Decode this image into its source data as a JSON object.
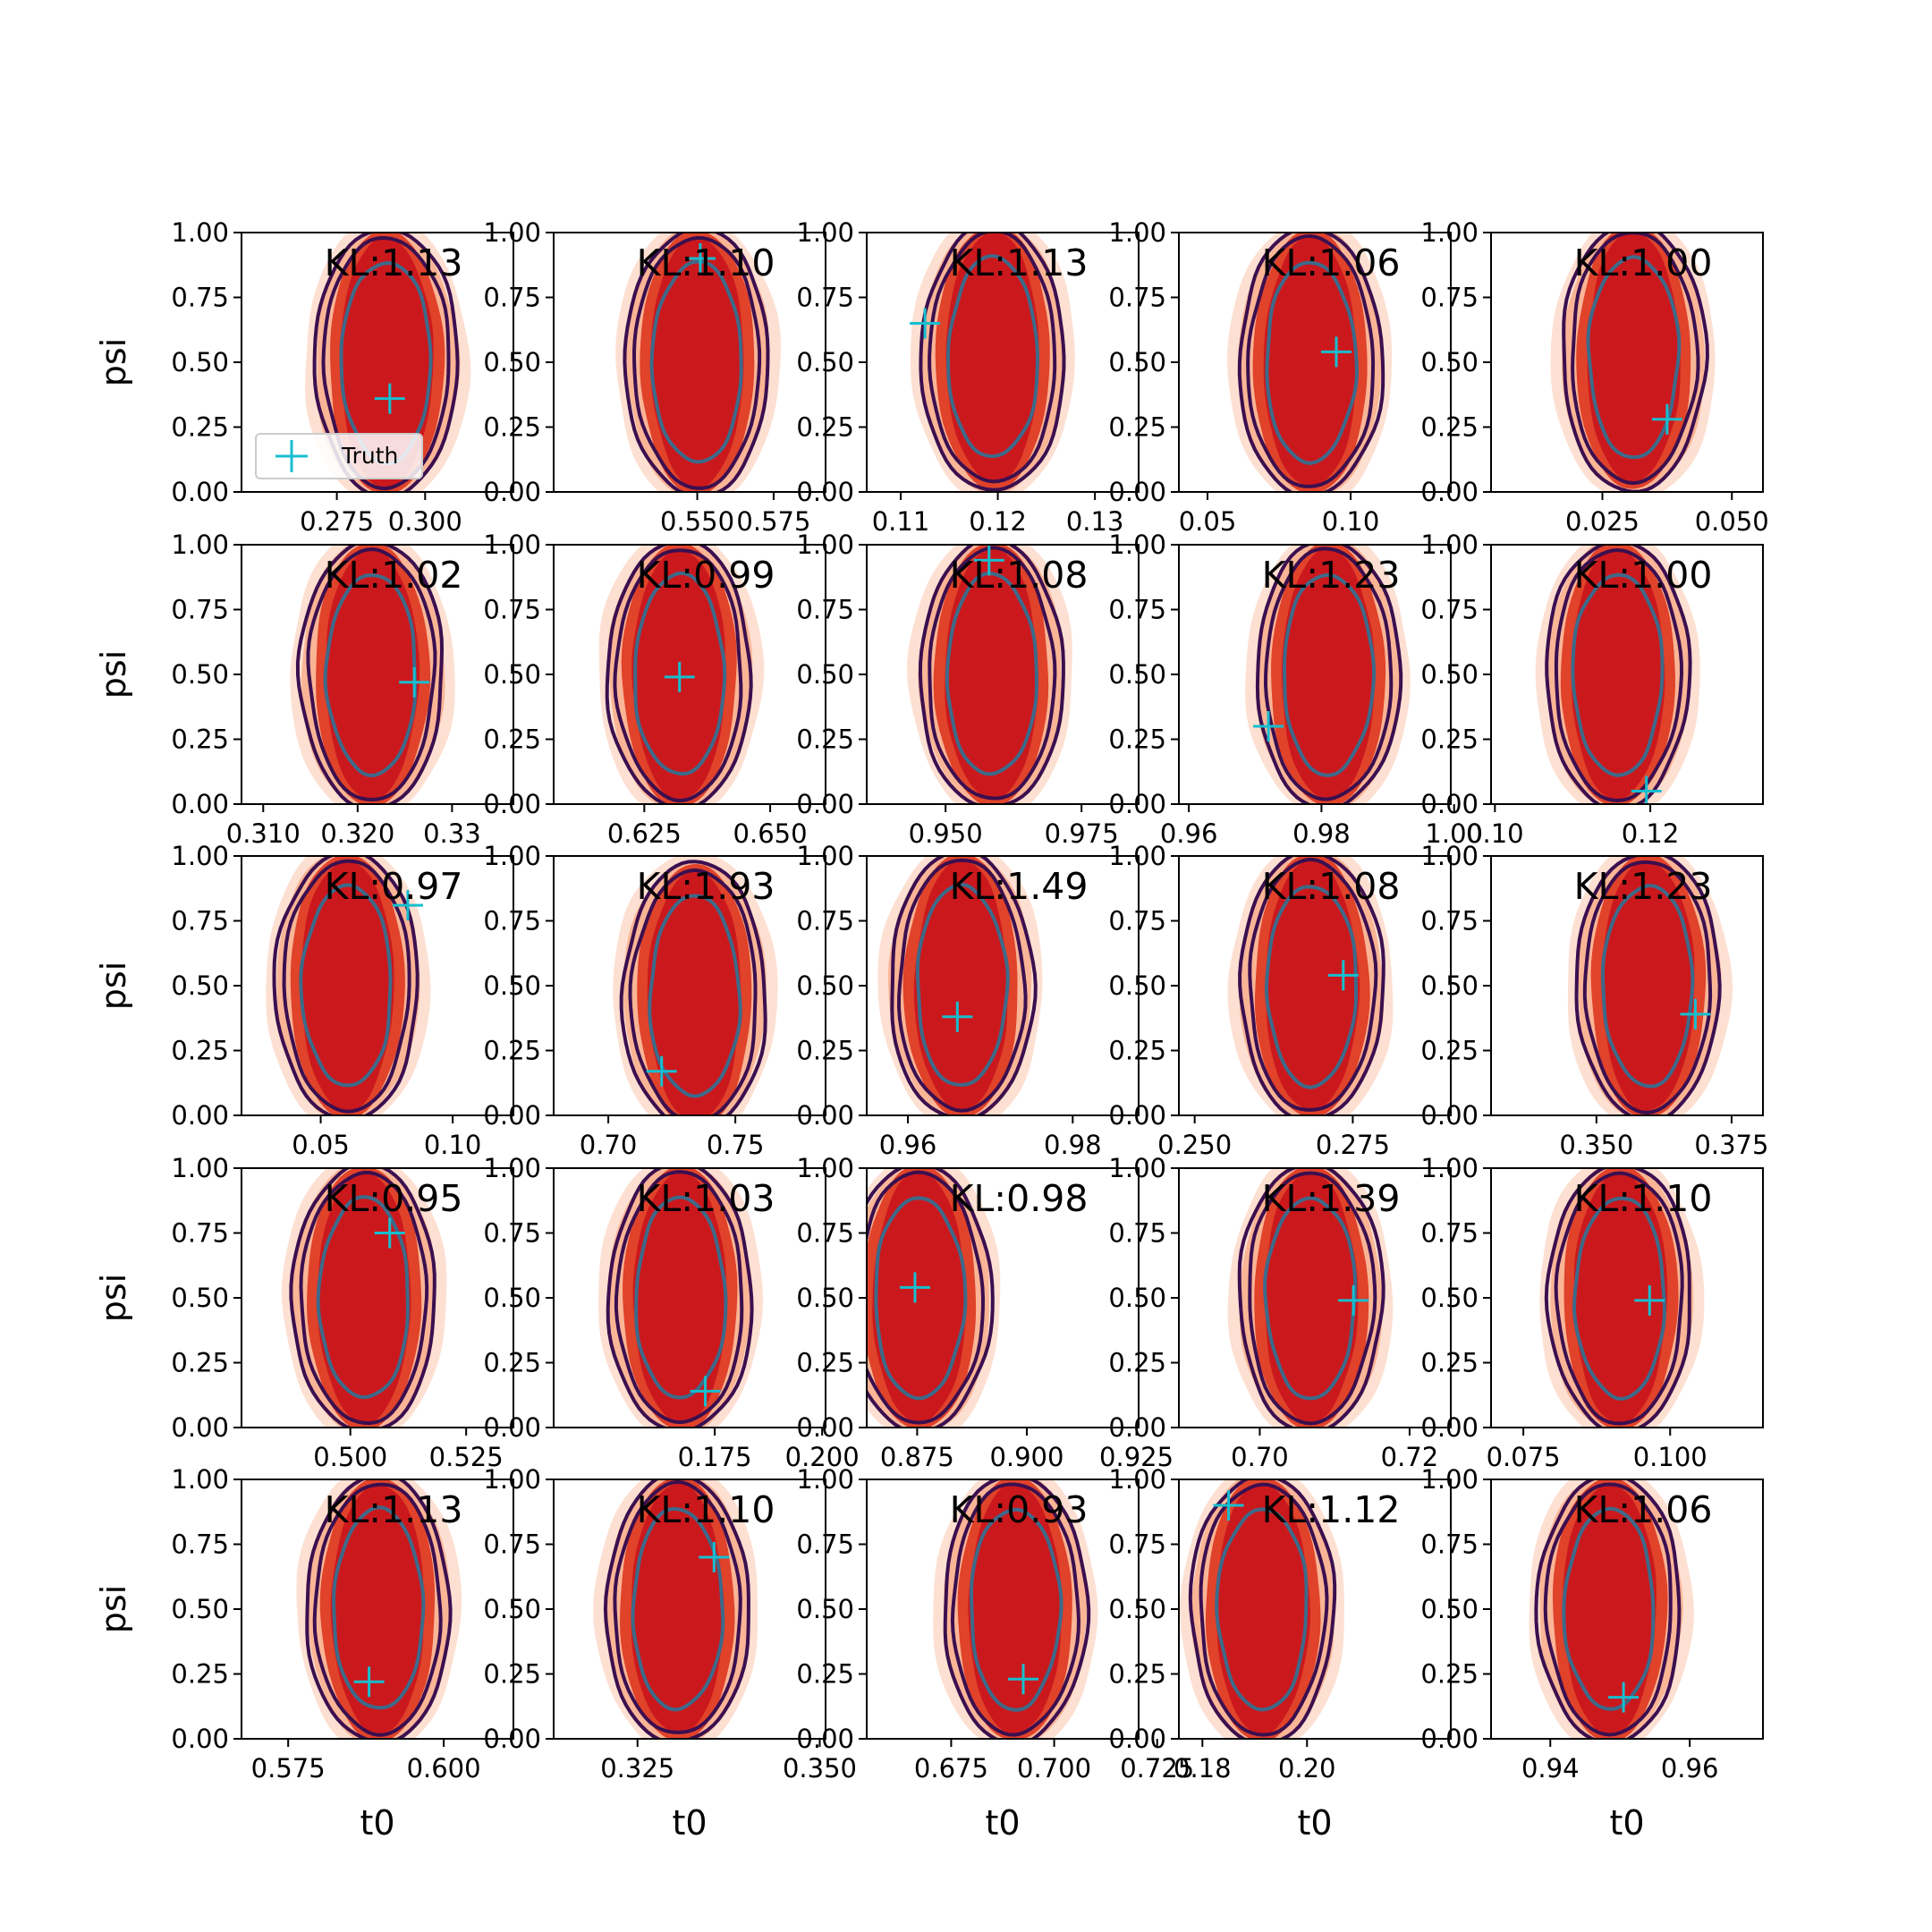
{
  "figure": {
    "ylabel": "psi",
    "xlabel": "t0",
    "legend_label": "Truth",
    "colors": {
      "truth": "#17becf",
      "contour_outer": "#3b0f4f",
      "contour_inner": "#3d6a8a",
      "fill_dark": "#cb181d",
      "fill_mid": "#e0422a",
      "fill_light": "#f9b596",
      "fill_faint": "#fde0d2"
    }
  },
  "chart_data": [
    {
      "type": "contour",
      "kl_label": "KL:1.13",
      "xticks": [
        "0.275",
        "0.300"
      ],
      "xtick_values": [
        0.275,
        0.3
      ],
      "xlim": [
        0.248,
        0.325
      ],
      "ylim": [
        0,
        1
      ],
      "yticks": [
        "0.00",
        "0.25",
        "0.50",
        "0.75",
        "1.00"
      ],
      "center": [
        0.289,
        0.5
      ],
      "truth": [
        0.29,
        0.36
      ]
    },
    {
      "type": "contour",
      "kl_label": "KL:1.10",
      "xticks": [
        "0.550",
        "0.575"
      ],
      "xtick_values": [
        0.55,
        0.575
      ],
      "xlim": [
        0.503,
        0.592
      ],
      "ylim": [
        0,
        1
      ],
      "yticks": [
        "0.00",
        "0.25",
        "0.50",
        "0.75",
        "1.00"
      ],
      "center": [
        0.55,
        0.5
      ],
      "truth": [
        0.551,
        0.9
      ]
    },
    {
      "type": "contour",
      "kl_label": "KL:1.13",
      "xticks": [
        "0.11",
        "0.12",
        "0.13"
      ],
      "xtick_values": [
        0.11,
        0.12,
        0.13
      ],
      "xlim": [
        0.1065,
        0.1345
      ],
      "ylim": [
        0,
        1
      ],
      "yticks": [
        "0.00",
        "0.25",
        "0.50",
        "0.75",
        "1.00"
      ],
      "center": [
        0.1195,
        0.52
      ],
      "truth": [
        0.1125,
        0.65
      ]
    },
    {
      "type": "contour",
      "kl_label": "KL:1.06",
      "xticks": [
        "0.05",
        "0.10"
      ],
      "xtick_values": [
        0.05,
        0.1
      ],
      "xlim": [
        0.04,
        0.135
      ],
      "ylim": [
        0,
        1
      ],
      "yticks": [
        "0.00",
        "0.25",
        "0.50",
        "0.75",
        "1.00"
      ],
      "center": [
        0.086,
        0.5
      ],
      "truth": [
        0.095,
        0.54
      ]
    },
    {
      "type": "contour",
      "kl_label": "KL:1.00",
      "xticks": [
        "0.025",
        "0.050"
      ],
      "xtick_values": [
        0.025,
        0.05
      ],
      "xlim": [
        0.0035,
        0.056
      ],
      "ylim": [
        0,
        1
      ],
      "yticks": [
        "0.00",
        "0.25",
        "0.50",
        "0.75",
        "1.00"
      ],
      "center": [
        0.031,
        0.52
      ],
      "truth": [
        0.0375,
        0.28
      ]
    },
    {
      "type": "contour",
      "kl_label": "KL:1.02",
      "xticks": [
        "0.310",
        "0.320",
        "0.33"
      ],
      "xtick_values": [
        0.31,
        0.32,
        0.33
      ],
      "xlim": [
        0.3077,
        0.3365
      ],
      "ylim": [
        0,
        1
      ],
      "yticks": [
        "0.00",
        "0.25",
        "0.50",
        "0.75",
        "1.00"
      ],
      "center": [
        0.3215,
        0.5
      ],
      "truth": [
        0.326,
        0.47
      ]
    },
    {
      "type": "contour",
      "kl_label": "KL:0.99",
      "xticks": [
        "0.625",
        "0.650"
      ],
      "xtick_values": [
        0.625,
        0.65
      ],
      "xlim": [
        0.607,
        0.661
      ],
      "ylim": [
        0,
        1
      ],
      "yticks": [
        "0.00",
        "0.25",
        "0.50",
        "0.75",
        "1.00"
      ],
      "center": [
        0.632,
        0.5
      ],
      "truth": [
        0.632,
        0.49
      ]
    },
    {
      "type": "contour",
      "kl_label": "KL:1.08",
      "xticks": [
        "0.950",
        "0.975"
      ],
      "xtick_values": [
        0.95,
        0.975
      ],
      "xlim": [
        0.9355,
        0.9855
      ],
      "ylim": [
        0,
        1
      ],
      "yticks": [
        "0.00",
        "0.25",
        "0.50",
        "0.75",
        "1.00"
      ],
      "center": [
        0.9585,
        0.5
      ],
      "truth": [
        0.958,
        0.94
      ]
    },
    {
      "type": "contour",
      "kl_label": "KL:1.23",
      "xticks": [
        "0.96",
        "0.98",
        "1.00"
      ],
      "xtick_values": [
        0.96,
        0.98,
        1.0
      ],
      "xlim": [
        0.9585,
        0.9995
      ],
      "ylim": [
        0,
        1
      ],
      "yticks": [
        "0.00",
        "0.25",
        "0.50",
        "0.75",
        "1.00"
      ],
      "center": [
        0.981,
        0.5
      ],
      "truth": [
        0.972,
        0.3
      ]
    },
    {
      "type": "contour",
      "kl_label": "KL:1.00",
      "xticks": [
        "0.10",
        "0.12"
      ],
      "xtick_values": [
        0.1,
        0.12
      ],
      "xlim": [
        0.0995,
        0.1345
      ],
      "ylim": [
        0,
        1
      ],
      "yticks": [
        "0.00",
        "0.25",
        "0.50",
        "0.75",
        "1.00"
      ],
      "center": [
        0.1158,
        0.5
      ],
      "truth": [
        0.1195,
        0.05
      ]
    },
    {
      "type": "contour",
      "kl_label": "KL:0.97",
      "xticks": [
        "0.05",
        "0.10"
      ],
      "xtick_values": [
        0.05,
        0.1
      ],
      "xlim": [
        0.02,
        0.123
      ],
      "ylim": [
        0,
        1
      ],
      "yticks": [
        "0.00",
        "0.25",
        "0.50",
        "0.75",
        "1.00"
      ],
      "center": [
        0.06,
        0.5
      ],
      "truth": [
        0.083,
        0.81
      ]
    },
    {
      "type": "contour",
      "kl_label": "KL:1.93",
      "xticks": [
        "0.70",
        "0.75"
      ],
      "xtick_values": [
        0.7,
        0.75
      ],
      "xlim": [
        0.6785,
        0.7855
      ],
      "ylim": [
        0,
        1
      ],
      "yticks": [
        "0.00",
        "0.25",
        "0.50",
        "0.75",
        "1.00"
      ],
      "center": [
        0.734,
        0.46
      ],
      "truth": [
        0.721,
        0.17
      ]
    },
    {
      "type": "contour",
      "kl_label": "KL:1.49",
      "xticks": [
        "0.96",
        "0.98"
      ],
      "xtick_values": [
        0.96,
        0.98
      ],
      "xlim": [
        0.955,
        0.988
      ],
      "ylim": [
        0,
        1
      ],
      "yticks": [
        "0.00",
        "0.25",
        "0.50",
        "0.75",
        "1.00"
      ],
      "center": [
        0.9665,
        0.5
      ],
      "truth": [
        0.966,
        0.38
      ]
    },
    {
      "type": "contour",
      "kl_label": "KL:1.08",
      "xticks": [
        "0.250",
        "0.275"
      ],
      "xtick_values": [
        0.25,
        0.275
      ],
      "xlim": [
        0.2475,
        0.2905
      ],
      "ylim": [
        0,
        1
      ],
      "yticks": [
        "0.00",
        "0.25",
        "0.50",
        "0.75",
        "1.00"
      ],
      "center": [
        0.2685,
        0.5
      ],
      "truth": [
        0.2735,
        0.54
      ]
    },
    {
      "type": "contour",
      "kl_label": "KL:1.23",
      "xticks": [
        "0.350",
        "0.375"
      ],
      "xtick_values": [
        0.35,
        0.375
      ],
      "xlim": [
        0.3305,
        0.3808
      ],
      "ylim": [
        0,
        1
      ],
      "yticks": [
        "0.00",
        "0.25",
        "0.50",
        "0.75",
        "1.00"
      ],
      "center": [
        0.3595,
        0.5
      ],
      "truth": [
        0.3683,
        0.39
      ]
    },
    {
      "type": "contour",
      "kl_label": "KL:0.95",
      "xticks": [
        "0.500",
        "0.525"
      ],
      "xtick_values": [
        0.5,
        0.525
      ],
      "xlim": [
        0.4765,
        0.5352
      ],
      "ylim": [
        0,
        1
      ],
      "yticks": [
        "0.00",
        "0.25",
        "0.50",
        "0.75",
        "1.00"
      ],
      "center": [
        0.503,
        0.5
      ],
      "truth": [
        0.5085,
        0.75
      ]
    },
    {
      "type": "contour",
      "kl_label": "KL:1.03",
      "xticks": [
        "0.175",
        "0.200"
      ],
      "xtick_values": [
        0.175,
        0.2
      ],
      "xlim": [
        0.1375,
        0.2008
      ],
      "ylim": [
        0,
        1
      ],
      "yticks": [
        "0.00",
        "0.25",
        "0.50",
        "0.75",
        "1.00"
      ],
      "center": [
        0.167,
        0.5
      ],
      "truth": [
        0.1728,
        0.14
      ]
    },
    {
      "type": "contour",
      "kl_label": "KL:0.98",
      "xticks": [
        "0.875",
        "0.900",
        "0.925"
      ],
      "xtick_values": [
        0.875,
        0.9,
        0.925
      ],
      "xlim": [
        0.8635,
        0.9255
      ],
      "ylim": [
        0,
        1
      ],
      "yticks": [
        "0.00",
        "0.25",
        "0.50",
        "0.75",
        "1.00"
      ],
      "center": [
        0.8755,
        0.5
      ],
      "truth": [
        0.8745,
        0.54
      ]
    },
    {
      "type": "contour",
      "kl_label": "KL:1.39",
      "xticks": [
        "0.70",
        "0.72"
      ],
      "xtick_values": [
        0.7,
        0.72
      ],
      "xlim": [
        0.6892,
        0.7255
      ],
      "ylim": [
        0,
        1
      ],
      "yticks": [
        "0.00",
        "0.25",
        "0.50",
        "0.75",
        "1.00"
      ],
      "center": [
        0.7068,
        0.5
      ],
      "truth": [
        0.7125,
        0.49
      ]
    },
    {
      "type": "contour",
      "kl_label": "KL:1.10",
      "xticks": [
        "0.075",
        "0.100"
      ],
      "xtick_values": [
        0.075,
        0.1
      ],
      "xlim": [
        0.0695,
        0.1158
      ],
      "ylim": [
        0,
        1
      ],
      "yticks": [
        "0.00",
        "0.25",
        "0.50",
        "0.75",
        "1.00"
      ],
      "center": [
        0.0915,
        0.5
      ],
      "truth": [
        0.0965,
        0.49
      ]
    },
    {
      "type": "contour",
      "kl_label": "KL:1.13",
      "xticks": [
        "0.575",
        "0.600"
      ],
      "xtick_values": [
        0.575,
        0.6
      ],
      "xlim": [
        0.5675,
        0.6112
      ],
      "ylim": [
        0,
        1
      ],
      "yticks": [
        "0.00",
        "0.25",
        "0.50",
        "0.75",
        "1.00"
      ],
      "center": [
        0.5895,
        0.5
      ],
      "truth": [
        0.588,
        0.22
      ]
    },
    {
      "type": "contour",
      "kl_label": "KL:1.10",
      "xticks": [
        "0.325",
        "0.350"
      ],
      "xtick_values": [
        0.325,
        0.35
      ],
      "xlim": [
        0.3135,
        0.3508
      ],
      "ylim": [
        0,
        1
      ],
      "yticks": [
        "0.00",
        "0.25",
        "0.50",
        "0.75",
        "1.00"
      ],
      "center": [
        0.3305,
        0.5
      ],
      "truth": [
        0.3355,
        0.7
      ]
    },
    {
      "type": "contour",
      "kl_label": "KL:0.93",
      "xticks": [
        "0.675",
        "0.700",
        "0.725"
      ],
      "xtick_values": [
        0.675,
        0.7,
        0.725
      ],
      "xlim": [
        0.6545,
        0.7205
      ],
      "ylim": [
        0,
        1
      ],
      "yticks": [
        "0.00",
        "0.25",
        "0.50",
        "0.75",
        "1.00"
      ],
      "center": [
        0.6905,
        0.5
      ],
      "truth": [
        0.6925,
        0.23
      ]
    },
    {
      "type": "contour",
      "kl_label": "KL:1.12",
      "xticks": [
        "0.18",
        "0.20"
      ],
      "xtick_values": [
        0.18,
        0.2
      ],
      "xlim": [
        0.1755,
        0.2275
      ],
      "ylim": [
        0,
        1
      ],
      "yticks": [
        "0.00",
        "0.25",
        "0.50",
        "0.75",
        "1.00"
      ],
      "center": [
        0.1915,
        0.5
      ],
      "truth": [
        0.185,
        0.9
      ]
    },
    {
      "type": "contour",
      "kl_label": "KL:1.06",
      "xticks": [
        "0.94",
        "0.96"
      ],
      "xtick_values": [
        0.94,
        0.96
      ],
      "xlim": [
        0.9315,
        0.9705
      ],
      "ylim": [
        0,
        1
      ],
      "yticks": [
        "0.00",
        "0.25",
        "0.50",
        "0.75",
        "1.00"
      ],
      "center": [
        0.9485,
        0.5
      ],
      "truth": [
        0.9505,
        0.16
      ]
    }
  ]
}
